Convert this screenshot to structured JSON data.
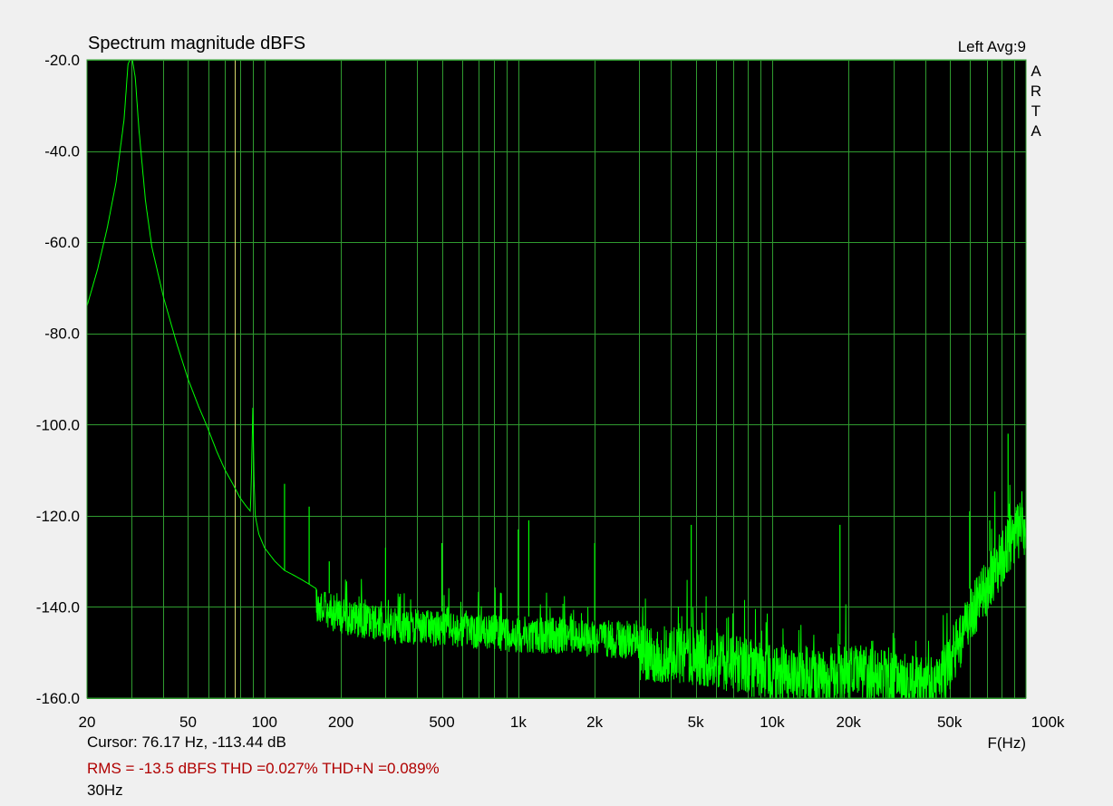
{
  "chart_data": {
    "type": "line",
    "title": "Spectrum magnitude dBFS",
    "channel_label": "Left  Avg:9",
    "brand_letters": [
      "A",
      "R",
      "T",
      "A"
    ],
    "xlabel": "F(Hz)",
    "ylabel": "",
    "x_scale": "log",
    "xlim": [
      20,
      100000
    ],
    "ylim": [
      -160,
      -20
    ],
    "x_ticks": [
      {
        "value": 20,
        "label": "20"
      },
      {
        "value": 50,
        "label": "50"
      },
      {
        "value": 100,
        "label": "100"
      },
      {
        "value": 200,
        "label": "200"
      },
      {
        "value": 500,
        "label": "500"
      },
      {
        "value": 1000,
        "label": "1k"
      },
      {
        "value": 2000,
        "label": "2k"
      },
      {
        "value": 5000,
        "label": "5k"
      },
      {
        "value": 10000,
        "label": "10k"
      },
      {
        "value": 20000,
        "label": "20k"
      },
      {
        "value": 50000,
        "label": "50k"
      },
      {
        "value": 100000,
        "label": "100k"
      }
    ],
    "y_ticks": [
      {
        "value": -20,
        "label": "-20.0"
      },
      {
        "value": -40,
        "label": "-40.0"
      },
      {
        "value": -60,
        "label": "-60.0"
      },
      {
        "value": -80,
        "label": "-80.0"
      },
      {
        "value": -100,
        "label": "-100.0"
      },
      {
        "value": -120,
        "label": "-120.0"
      },
      {
        "value": -140,
        "label": "-140.0"
      },
      {
        "value": -160,
        "label": "-160.0"
      }
    ],
    "grid": true,
    "cursor_frequency": 76.17,
    "series": [
      {
        "color": "#00ff00",
        "envelope": {
          "x": [
            20,
            22,
            24,
            26,
            28,
            29,
            30,
            31,
            32,
            34,
            36,
            40,
            45,
            50,
            55,
            58,
            60,
            65,
            70,
            75,
            80,
            85,
            88,
            89,
            90,
            91,
            92,
            95,
            100,
            110,
            120,
            130,
            140,
            150,
            160,
            180,
            200,
            250,
            300,
            400,
            500,
            700,
            1000,
            1500,
            2000,
            3000,
            4000,
            5000,
            7000,
            10000,
            15000,
            20000,
            25000,
            30000,
            40000,
            45000,
            50000,
            60000,
            70000,
            80000,
            90000,
            100000
          ],
          "y": [
            -74,
            -66,
            -57,
            -47,
            -33,
            -21,
            -19,
            -24,
            -35,
            -51,
            -61,
            -72,
            -82,
            -90,
            -96,
            -99,
            -101,
            -106,
            -110,
            -113,
            -116,
            -118,
            -119,
            -110,
            -96,
            -112,
            -120,
            -124,
            -127,
            -130,
            -132,
            -133,
            -134,
            -135,
            -136,
            -137,
            -138,
            -139,
            -140,
            -140.5,
            -141,
            -141.5,
            -142,
            -142.5,
            -143,
            -143.5,
            -144,
            -144.5,
            -146,
            -148,
            -149,
            -148,
            -149,
            -150,
            -151,
            -151,
            -146,
            -136,
            -129,
            -123,
            -118,
            -116
          ]
        },
        "spikes": [
          {
            "x": 120,
            "y": -113
          },
          {
            "x": 150,
            "y": -118
          },
          {
            "x": 180,
            "y": -130
          },
          {
            "x": 300,
            "y": -127
          },
          {
            "x": 500,
            "y": -126
          },
          {
            "x": 1000,
            "y": -123
          },
          {
            "x": 1100,
            "y": -121
          },
          {
            "x": 2000,
            "y": -126
          },
          {
            "x": 4800,
            "y": -122
          },
          {
            "x": 18500,
            "y": -122
          },
          {
            "x": 60000,
            "y": -119
          },
          {
            "x": 72000,
            "y": -121
          },
          {
            "x": 85000,
            "y": -102
          }
        ],
        "noise_band_db": 8
      }
    ]
  },
  "readouts": {
    "cursor": "Cursor: 76.17 Hz, -113.44 dB",
    "measurements": "RMS =  -13.5 dBFS  THD =0.027%  THD+N =0.089%",
    "generator_frequency": "30Hz"
  },
  "colors": {
    "plot_background": "#000000",
    "grid": "#2f9b2f",
    "trace": "#00ff00",
    "cursor": "#d8d86a",
    "measurement_text": "#b00000"
  }
}
